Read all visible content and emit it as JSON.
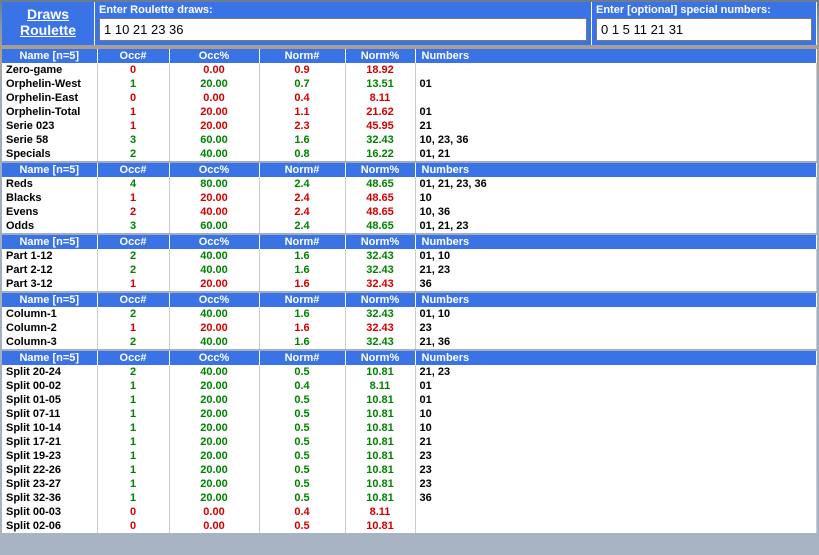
{
  "logo": {
    "line1": "Draws",
    "line2": "Roulette"
  },
  "inputs": {
    "draws_label": "Enter Roulette draws:",
    "draws_value": "1 10 21 23 36",
    "specials_label": "Enter [optional] special numbers:",
    "specials_value": "0 1 5 11 21 31"
  },
  "header": {
    "name": "Name [n=5]",
    "occn": "Occ#",
    "occp": "Occ%",
    "normn": "Norm#",
    "normp": "Norm%",
    "nums": "Numbers"
  },
  "colors": {
    "red": "#d40000",
    "green": "#008200",
    "black": "#000000",
    "header_bg": "#3973e5"
  },
  "sections": [
    {
      "rows": [
        {
          "name": "Zero-game",
          "nc": "red",
          "occn": "0",
          "occp": "0.00",
          "normn": "0.9",
          "normp": "18.92",
          "vc": "red",
          "nums": ""
        },
        {
          "name": "Orphelin-West",
          "nc": "grn",
          "occn": "1",
          "occp": "20.00",
          "normn": "0.7",
          "normp": "13.51",
          "vc": "grn",
          "nums": "01"
        },
        {
          "name": "Orphelin-East",
          "nc": "red",
          "occn": "0",
          "occp": "0.00",
          "normn": "0.4",
          "normp": "8.11",
          "vc": "red",
          "nums": ""
        },
        {
          "name": "Orphelin-Total",
          "nc": "red",
          "occn": "1",
          "occp": "20.00",
          "normn": "1.1",
          "normp": "21.62",
          "vc": "red",
          "nums": "01"
        },
        {
          "name": "Serie 023",
          "nc": "grn",
          "occn": "1",
          "occp": "20.00",
          "normn": "2.3",
          "normp": "45.95",
          "vc": "red",
          "nums": "21"
        },
        {
          "name": "Serie 58",
          "nc": "grn",
          "occn": "3",
          "occp": "60.00",
          "normn": "1.6",
          "normp": "32.43",
          "vc": "grn",
          "nums": "10, 23, 36"
        },
        {
          "name": "Specials",
          "nc": "grn",
          "occn": "2",
          "occp": "40.00",
          "normn": "0.8",
          "normp": "16.22",
          "vc": "grn",
          "nums": "01, 21"
        }
      ]
    },
    {
      "rows": [
        {
          "name": "Reds",
          "nc": "grn",
          "occn": "4",
          "occp": "80.00",
          "normn": "2.4",
          "normp": "48.65",
          "vc": "grn",
          "nums": "01, 21, 23, 36"
        },
        {
          "name": "Blacks",
          "nc": "red",
          "occn": "1",
          "occp": "20.00",
          "normn": "2.4",
          "normp": "48.65",
          "vc": "red",
          "nums": "10"
        },
        {
          "name": "Evens",
          "nc": "red",
          "occn": "2",
          "occp": "40.00",
          "normn": "2.4",
          "normp": "48.65",
          "vc": "red",
          "nums": "10, 36"
        },
        {
          "name": "Odds",
          "nc": "grn",
          "occn": "3",
          "occp": "60.00",
          "normn": "2.4",
          "normp": "48.65",
          "vc": "grn",
          "nums": "01, 21, 23"
        }
      ]
    },
    {
      "rows": [
        {
          "name": "Part 1-12",
          "nc": "grn",
          "occn": "2",
          "occp": "40.00",
          "normn": "1.6",
          "normp": "32.43",
          "vc": "grn",
          "nums": "01, 10"
        },
        {
          "name": "Part 2-12",
          "nc": "grn",
          "occn": "2",
          "occp": "40.00",
          "normn": "1.6",
          "normp": "32.43",
          "vc": "grn",
          "nums": "21, 23"
        },
        {
          "name": "Part 3-12",
          "nc": "red",
          "occn": "1",
          "occp": "20.00",
          "normn": "1.6",
          "normp": "32.43",
          "vc": "red",
          "nums": "36"
        }
      ]
    },
    {
      "rows": [
        {
          "name": "Column-1",
          "nc": "grn",
          "occn": "2",
          "occp": "40.00",
          "normn": "1.6",
          "normp": "32.43",
          "vc": "grn",
          "nums": "01, 10"
        },
        {
          "name": "Column-2",
          "nc": "red",
          "occn": "1",
          "occp": "20.00",
          "normn": "1.6",
          "normp": "32.43",
          "vc": "red",
          "nums": "23"
        },
        {
          "name": "Column-3",
          "nc": "grn",
          "occn": "2",
          "occp": "40.00",
          "normn": "1.6",
          "normp": "32.43",
          "vc": "grn",
          "nums": "21, 36"
        }
      ]
    },
    {
      "rows": [
        {
          "name": "Split 20-24",
          "nc": "grn",
          "occn": "2",
          "occp": "40.00",
          "normn": "0.5",
          "normp": "10.81",
          "vc": "grn",
          "nums": "21, 23"
        },
        {
          "name": "Split 00-02",
          "nc": "grn",
          "occn": "1",
          "occp": "20.00",
          "normn": "0.4",
          "normp": "8.11",
          "vc": "grn",
          "nums": "01"
        },
        {
          "name": "Split 01-05",
          "nc": "grn",
          "occn": "1",
          "occp": "20.00",
          "normn": "0.5",
          "normp": "10.81",
          "vc": "grn",
          "nums": "01"
        },
        {
          "name": "Split 07-11",
          "nc": "grn",
          "occn": "1",
          "occp": "20.00",
          "normn": "0.5",
          "normp": "10.81",
          "vc": "grn",
          "nums": "10"
        },
        {
          "name": "Split 10-14",
          "nc": "grn",
          "occn": "1",
          "occp": "20.00",
          "normn": "0.5",
          "normp": "10.81",
          "vc": "grn",
          "nums": "10"
        },
        {
          "name": "Split 17-21",
          "nc": "grn",
          "occn": "1",
          "occp": "20.00",
          "normn": "0.5",
          "normp": "10.81",
          "vc": "grn",
          "nums": "21"
        },
        {
          "name": "Split 19-23",
          "nc": "grn",
          "occn": "1",
          "occp": "20.00",
          "normn": "0.5",
          "normp": "10.81",
          "vc": "grn",
          "nums": "23"
        },
        {
          "name": "Split 22-26",
          "nc": "grn",
          "occn": "1",
          "occp": "20.00",
          "normn": "0.5",
          "normp": "10.81",
          "vc": "grn",
          "nums": "23"
        },
        {
          "name": "Split 23-27",
          "nc": "grn",
          "occn": "1",
          "occp": "20.00",
          "normn": "0.5",
          "normp": "10.81",
          "vc": "grn",
          "nums": "23"
        },
        {
          "name": "Split 32-36",
          "nc": "grn",
          "occn": "1",
          "occp": "20.00",
          "normn": "0.5",
          "normp": "10.81",
          "vc": "grn",
          "nums": "36"
        },
        {
          "name": "Split 00-03",
          "nc": "red",
          "occn": "0",
          "occp": "0.00",
          "normn": "0.4",
          "normp": "8.11",
          "vc": "red",
          "nums": ""
        },
        {
          "name": "Split 02-06",
          "nc": "red",
          "occn": "0",
          "occp": "0.00",
          "normn": "0.5",
          "normp": "10.81",
          "vc": "red",
          "nums": ""
        }
      ]
    }
  ]
}
